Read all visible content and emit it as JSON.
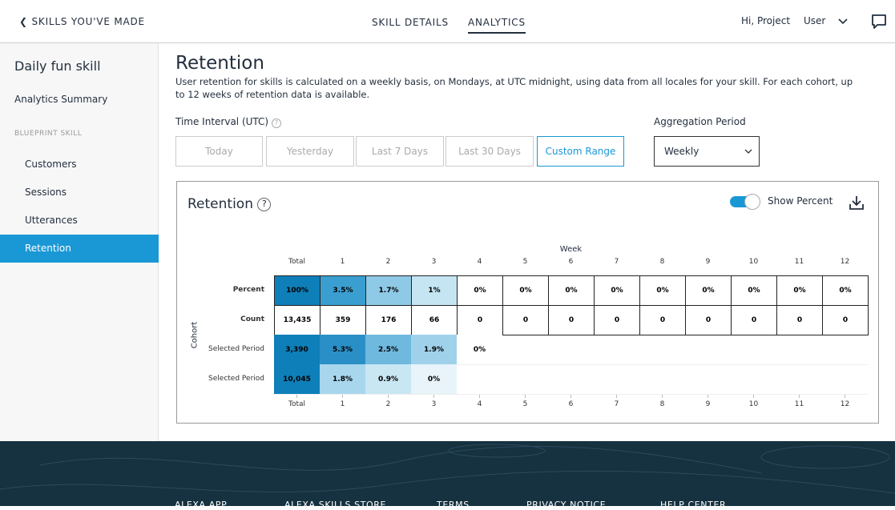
{
  "header": {
    "back": "SKILLS YOU'VE MADE",
    "tabs": [
      "SKILL DETAILS",
      "ANALYTICS"
    ],
    "greeting": "Hi, Project",
    "user": "User"
  },
  "sidebar": {
    "skill_name": "Daily fun skill",
    "summary": "Analytics Summary",
    "section": "BLUEPRINT SKILL",
    "items": [
      "Customers",
      "Sessions",
      "Utterances",
      "Retention"
    ]
  },
  "main": {
    "title": "Retention",
    "description": "User retention for skills is calculated on a weekly basis, on Mondays, at UTC midnight, using data from all locales for your skill. For each cohort, up to 12 weeks of retention data is available.",
    "time_interval_label": "Time Interval (UTC)",
    "time_buttons": [
      "Today",
      "Yesterday",
      "Last 7 Days",
      "Last 30 Days",
      "Custom Range"
    ],
    "aggregation_label": "Aggregation Period",
    "aggregation_value": "Weekly"
  },
  "card": {
    "title": "Retention",
    "toggle_label": "Show Percent",
    "week_label": "Week",
    "cohort_label": "Cohort",
    "columns": [
      "Total",
      "1",
      "2",
      "3",
      "4",
      "5",
      "6",
      "7",
      "8",
      "9",
      "10",
      "11",
      "12"
    ],
    "rows": [
      {
        "label": "Percent",
        "cells": [
          "100%",
          "3.5%",
          "1.7%",
          "1%",
          "0%",
          "0%",
          "0%",
          "0%",
          "0%",
          "0%",
          "0%",
          "0%",
          "0%"
        ],
        "fills": [
          "#0e7fb8",
          "#3a9fd0",
          "#8ec9e6",
          "#c6e5f3",
          "#ffffff",
          "#ffffff",
          "#ffffff",
          "#ffffff",
          "#ffffff",
          "#ffffff",
          "#ffffff",
          "#ffffff",
          "#ffffff"
        ]
      },
      {
        "label": "Count",
        "cells": [
          "13,435",
          "359",
          "176",
          "66",
          "0",
          "0",
          "0",
          "0",
          "0",
          "0",
          "0",
          "0",
          "0"
        ],
        "fills": [
          "#ffffff",
          "#ffffff",
          "#ffffff",
          "#ffffff",
          "#ffffff",
          "#ffffff",
          "#ffffff",
          "#ffffff",
          "#ffffff",
          "#ffffff",
          "#ffffff",
          "#ffffff",
          "#ffffff"
        ]
      },
      {
        "label": "Selected Period",
        "cells": [
          "3,390",
          "5.3%",
          "2.5%",
          "1.9%",
          "0%"
        ],
        "fills": [
          "#0e7fb8",
          "#2a8fc6",
          "#6fb8de",
          "#9fd2ea",
          "#ffffff"
        ]
      },
      {
        "label": "Selected Period",
        "cells": [
          "10,045",
          "1.8%",
          "0.9%",
          "0%"
        ],
        "fills": [
          "#0e7fb8",
          "#a8d6ec",
          "#c9e6f3",
          "#e8f4fa"
        ]
      }
    ]
  },
  "footer": {
    "links": [
      "ALEXA APP",
      "ALEXA SKILLS STORE",
      "TERMS",
      "PRIVACY NOTICE",
      "HELP CENTER"
    ]
  }
}
